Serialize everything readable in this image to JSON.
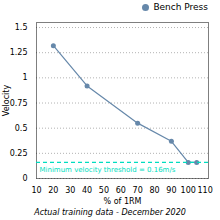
{
  "chart_data": {
    "type": "line",
    "xlabel": "% of 1RM",
    "ylabel": "Velocity",
    "caption": "Actual training data - December 2020",
    "x": [
      20,
      40,
      70,
      90,
      100,
      105
    ],
    "series": [
      {
        "name": "Bench Press",
        "color": "#6688aa",
        "marker": "o",
        "values": [
          1.32,
          0.92,
          0.55,
          0.37,
          0.16,
          0.16
        ]
      }
    ],
    "annotations": [
      {
        "type": "hline",
        "y": 0.16,
        "text": "Minimum velocity threshold = 0.16m/s",
        "color": "#00ddc0",
        "line_style": "dashed"
      }
    ],
    "xlim": [
      10,
      112
    ],
    "ylim": [
      0,
      1.55
    ],
    "xticks": [
      10,
      20,
      30,
      40,
      50,
      60,
      70,
      80,
      90,
      100,
      110
    ],
    "yticks": [
      0,
      0.25,
      0.5,
      0.75,
      1,
      1.25,
      1.5
    ],
    "grid": "y",
    "legend": "upper right"
  }
}
